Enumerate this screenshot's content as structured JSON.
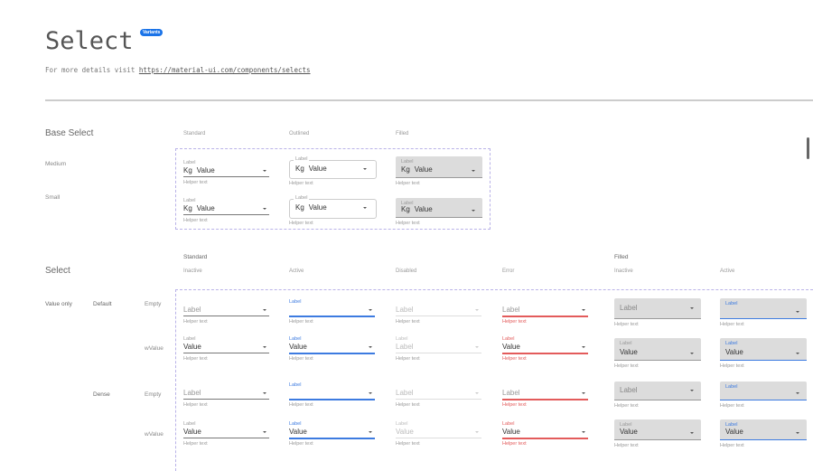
{
  "header": {
    "title": "Select",
    "badge": "Variants",
    "subtitle_prefix": "For more details visit ",
    "link": "https://material-ui.com/components/selects"
  },
  "colors": {
    "accent": "#3d7be0",
    "error": "#e35b5b",
    "filled_bg": "#dcdcdc",
    "badge": "#1a73e8",
    "dashed_border": "#b9b2e8"
  },
  "base_select": {
    "heading": "Base Select",
    "columns": [
      "Standard",
      "Outlined",
      "Filled"
    ],
    "rows": [
      {
        "name": "Medium",
        "cells": [
          {
            "variant": "standard",
            "state": "inactive",
            "label": "Label",
            "prefix": "Kg",
            "value": "Value",
            "helper": "Helper text"
          },
          {
            "variant": "outlined",
            "state": "inactive",
            "label": "Label",
            "prefix": "Kg",
            "value": "Value",
            "helper": "Helper text"
          },
          {
            "variant": "filled",
            "state": "inactive",
            "label": "Label",
            "prefix": "Kg",
            "value": "Value",
            "helper": "Helper text"
          }
        ]
      },
      {
        "name": "Small",
        "cells": [
          {
            "variant": "standard",
            "state": "inactive",
            "label": "Label",
            "prefix": "Kg",
            "value": "Value",
            "helper": "Helper text"
          },
          {
            "variant": "outlined",
            "state": "inactive",
            "label": "Label",
            "prefix": "Kg",
            "value": "Value",
            "helper": "Helper text"
          },
          {
            "variant": "filled",
            "state": "inactive",
            "label": "Label",
            "prefix": "Kg",
            "value": "Value",
            "helper": "Helper text"
          }
        ]
      }
    ]
  },
  "select": {
    "heading": "Select",
    "groups": [
      "Standard",
      "Filled"
    ],
    "columns": [
      "Inactive",
      "Active",
      "Disabled",
      "Error",
      "Inactive",
      "Active"
    ],
    "category": "Value only",
    "densities": [
      "Default",
      "Dense"
    ],
    "rows": [
      {
        "name": "Empty",
        "cells": [
          {
            "variant": "standard",
            "state": "inactive",
            "label": "Label",
            "value": "",
            "helper": "Helper text"
          },
          {
            "variant": "standard",
            "state": "active",
            "label": "Label",
            "value": "",
            "helper": "Helper text"
          },
          {
            "variant": "standard",
            "state": "disabled",
            "label": "Label",
            "value": "",
            "helper": "Helper text"
          },
          {
            "variant": "standard",
            "state": "error",
            "label": "Label",
            "value": "",
            "helper": "Helper text"
          },
          {
            "variant": "filled",
            "state": "inactive",
            "label": "Label",
            "value": "",
            "helper": "Helper text"
          },
          {
            "variant": "filled",
            "state": "active",
            "label": "Label",
            "value": "",
            "helper": "Helper text"
          }
        ]
      },
      {
        "name": "wValue",
        "cells": [
          {
            "variant": "standard",
            "state": "inactive",
            "label": "Label",
            "value": "Value",
            "helper": "Helper text"
          },
          {
            "variant": "standard",
            "state": "active",
            "label": "Label",
            "value": "Value",
            "helper": "Helper text"
          },
          {
            "variant": "standard",
            "state": "disabled",
            "label": "Label",
            "value": "Label",
            "helper": "Helper text"
          },
          {
            "variant": "standard",
            "state": "error",
            "label": "Label",
            "value": "Value",
            "helper": "Helper text"
          },
          {
            "variant": "filled",
            "state": "inactive",
            "label": "Label",
            "value": "Value",
            "helper": "Helper text"
          },
          {
            "variant": "filled",
            "state": "active",
            "label": "Label",
            "value": "Value",
            "helper": "Helper text"
          }
        ]
      },
      {
        "name": "Empty",
        "cells": [
          {
            "variant": "standard",
            "state": "inactive",
            "label": "Label",
            "value": "",
            "helper": "Helper text"
          },
          {
            "variant": "standard",
            "state": "active",
            "label": "Label",
            "value": "",
            "helper": "Helper text"
          },
          {
            "variant": "standard",
            "state": "disabled",
            "label": "Label",
            "value": "",
            "helper": "Helper text"
          },
          {
            "variant": "standard",
            "state": "error",
            "label": "Label",
            "value": "",
            "helper": "Helper text"
          },
          {
            "variant": "filled",
            "state": "inactive",
            "label": "Label",
            "value": "",
            "helper": "Helper text"
          },
          {
            "variant": "filled",
            "state": "active",
            "label": "Label",
            "value": "",
            "helper": "Helper text"
          }
        ]
      },
      {
        "name": "wValue",
        "cells": [
          {
            "variant": "standard",
            "state": "inactive",
            "label": "Label",
            "value": "Value",
            "helper": "Helper text"
          },
          {
            "variant": "standard",
            "state": "active",
            "label": "Label",
            "value": "Value",
            "helper": "Helper text"
          },
          {
            "variant": "standard",
            "state": "disabled",
            "label": "Label",
            "value": "Value",
            "helper": "Helper text"
          },
          {
            "variant": "standard",
            "state": "error",
            "label": "Label",
            "value": "Value",
            "helper": "Helper text"
          },
          {
            "variant": "filled",
            "state": "inactive",
            "label": "Label",
            "value": "Value",
            "helper": "Helper text"
          },
          {
            "variant": "filled",
            "state": "active",
            "label": "Label",
            "value": "Value",
            "helper": "Helper text"
          }
        ]
      }
    ]
  }
}
